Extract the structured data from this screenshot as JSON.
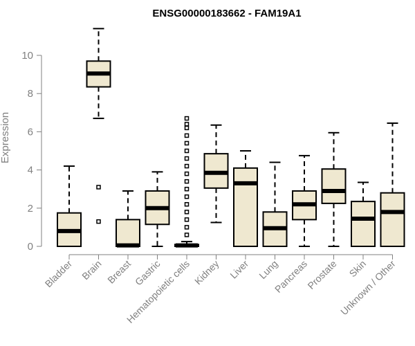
{
  "chart_data": {
    "type": "boxplot",
    "title": "ENSG00000183662 - FAM19A1",
    "xlabel": "",
    "ylabel": "Expression",
    "ylim": [
      0,
      11.8
    ],
    "yticks": [
      0,
      2,
      4,
      6,
      8,
      10
    ],
    "grid": false,
    "colors": {
      "box_fill": "#efe8d0",
      "box_stroke": "#000000",
      "axis": "#808080"
    },
    "categories": [
      "Bladder",
      "Brain",
      "Breast",
      "Gastric",
      "Hematopoietic cells",
      "Kidney",
      "Liver",
      "Lung",
      "Pancreas",
      "Prostate",
      "Skin",
      "Unknown / Other"
    ],
    "boxes": [
      {
        "category": "Bladder",
        "whisker_low": 0,
        "q1": 0,
        "median": 0.8,
        "q3": 1.75,
        "whisker_high": 4.2,
        "outliers": []
      },
      {
        "category": "Brain",
        "whisker_low": 6.7,
        "q1": 8.35,
        "median": 9.05,
        "q3": 9.7,
        "whisker_high": 11.4,
        "outliers": [
          3.1,
          1.3
        ]
      },
      {
        "category": "Breast",
        "whisker_low": 0,
        "q1": 0,
        "median": 0.05,
        "q3": 1.4,
        "whisker_high": 2.9,
        "outliers": []
      },
      {
        "category": "Gastric",
        "whisker_low": 0,
        "q1": 1.15,
        "median": 2.0,
        "q3": 2.9,
        "whisker_high": 3.9,
        "outliers": []
      },
      {
        "category": "Hematopoietic cells",
        "whisker_low": 0,
        "q1": 0,
        "median": 0.05,
        "q3": 0.1,
        "whisker_high": 0.25,
        "outliers": [
          0.6,
          1.0,
          1.4,
          1.8,
          2.2,
          2.6,
          3.0,
          3.4,
          3.8,
          4.2,
          4.6,
          5.0,
          5.4,
          5.8,
          6.2,
          6.4,
          6.7
        ]
      },
      {
        "category": "Kidney",
        "whisker_low": 1.25,
        "q1": 3.05,
        "median": 3.85,
        "q3": 4.85,
        "whisker_high": 6.35,
        "outliers": []
      },
      {
        "category": "Liver",
        "whisker_low": 0,
        "q1": 0,
        "median": 3.3,
        "q3": 4.1,
        "whisker_high": 5.0,
        "outliers": []
      },
      {
        "category": "Lung",
        "whisker_low": 0,
        "q1": 0,
        "median": 0.95,
        "q3": 1.8,
        "whisker_high": 4.4,
        "outliers": []
      },
      {
        "category": "Pancreas",
        "whisker_low": 0,
        "q1": 1.4,
        "median": 2.2,
        "q3": 2.9,
        "whisker_high": 4.75,
        "outliers": []
      },
      {
        "category": "Prostate",
        "whisker_low": 0,
        "q1": 2.25,
        "median": 2.9,
        "q3": 4.05,
        "whisker_high": 5.95,
        "outliers": []
      },
      {
        "category": "Skin",
        "whisker_low": 0,
        "q1": 0,
        "median": 1.45,
        "q3": 2.35,
        "whisker_high": 3.35,
        "outliers": []
      },
      {
        "category": "Unknown / Other",
        "whisker_low": 0,
        "q1": 0,
        "median": 1.8,
        "q3": 2.8,
        "whisker_high": 6.45,
        "outliers": []
      }
    ]
  }
}
